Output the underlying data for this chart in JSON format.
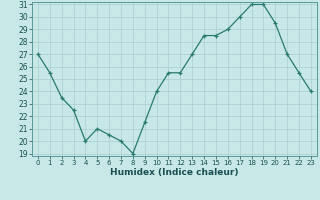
{
  "x": [
    0,
    1,
    2,
    3,
    4,
    5,
    6,
    7,
    8,
    9,
    10,
    11,
    12,
    13,
    14,
    15,
    16,
    17,
    18,
    19,
    20,
    21,
    22,
    23
  ],
  "y": [
    27,
    25.5,
    23.5,
    22.5,
    20,
    21,
    20.5,
    20,
    19,
    21.5,
    24,
    25.5,
    25.5,
    27,
    28.5,
    28.5,
    29,
    30,
    31,
    31,
    29.5,
    27,
    25.5,
    24
  ],
  "xlabel": "Humidex (Indice chaleur)",
  "ylim": [
    19,
    31
  ],
  "xlim": [
    -0.5,
    23.5
  ],
  "yticks": [
    19,
    20,
    21,
    22,
    23,
    24,
    25,
    26,
    27,
    28,
    29,
    30,
    31
  ],
  "xticks": [
    0,
    1,
    2,
    3,
    4,
    5,
    6,
    7,
    8,
    9,
    10,
    11,
    12,
    13,
    14,
    15,
    16,
    17,
    18,
    19,
    20,
    21,
    22,
    23
  ],
  "line_color": "#2a7a6e",
  "bg_color": "#c8e8e8",
  "grid_color": "#aacece",
  "text_color": "#1a5050",
  "spine_color": "#5a9898"
}
